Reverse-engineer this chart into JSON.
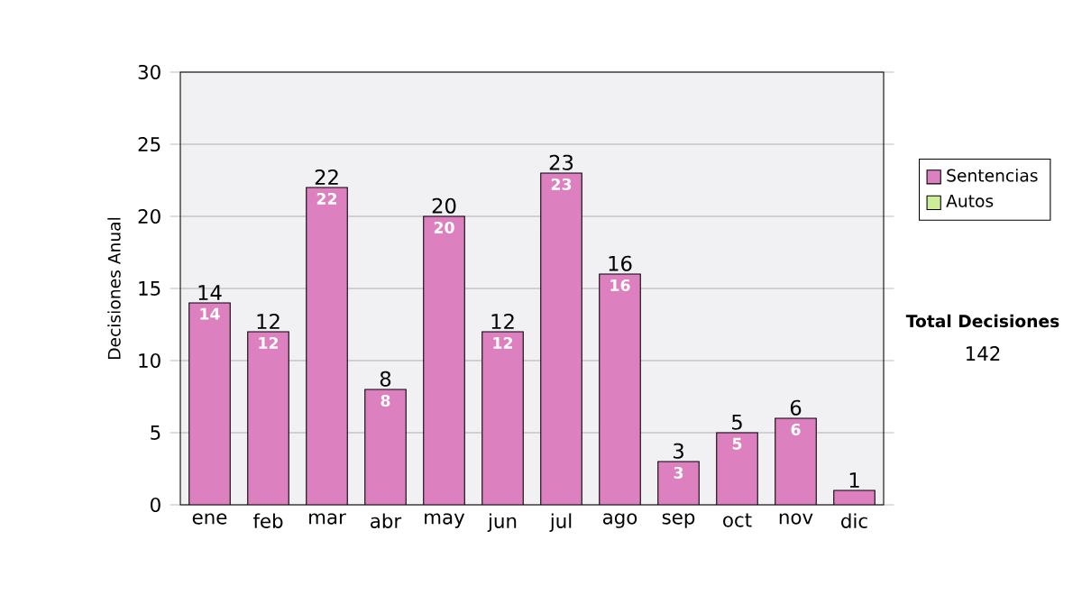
{
  "chart_data": {
    "type": "bar",
    "stacked": true,
    "ylabel": "Decisiones Anual",
    "categories": [
      "ene",
      "feb",
      "mar",
      "abr",
      "may",
      "jun",
      "jul",
      "ago",
      "sep",
      "oct",
      "nov",
      "dic"
    ],
    "series": [
      {
        "name": "Sentencias",
        "color": "#dd80bf",
        "values": [
          14,
          12,
          22,
          8,
          20,
          12,
          23,
          16,
          3,
          5,
          6,
          1
        ],
        "value_labels": [
          "14",
          "12",
          "22",
          "8",
          "20",
          "12",
          "23",
          "16",
          "3",
          "5",
          "6",
          null
        ]
      },
      {
        "name": "Autos",
        "color": "#ccee99",
        "values": [
          0,
          0,
          0,
          0,
          0,
          0,
          0,
          0,
          0,
          0,
          0,
          0
        ]
      }
    ],
    "totals": [
      "14",
      "12",
      "22",
      "8",
      "20",
      "12",
      "23",
      "16",
      "3",
      "5",
      "6",
      "1"
    ],
    "ylim": [
      0,
      30
    ],
    "yticks": [
      0,
      5,
      10,
      15,
      20,
      25,
      30
    ],
    "grid": "y",
    "legend": "right",
    "annotations": [
      "Total Decisiones",
      "142"
    ]
  }
}
